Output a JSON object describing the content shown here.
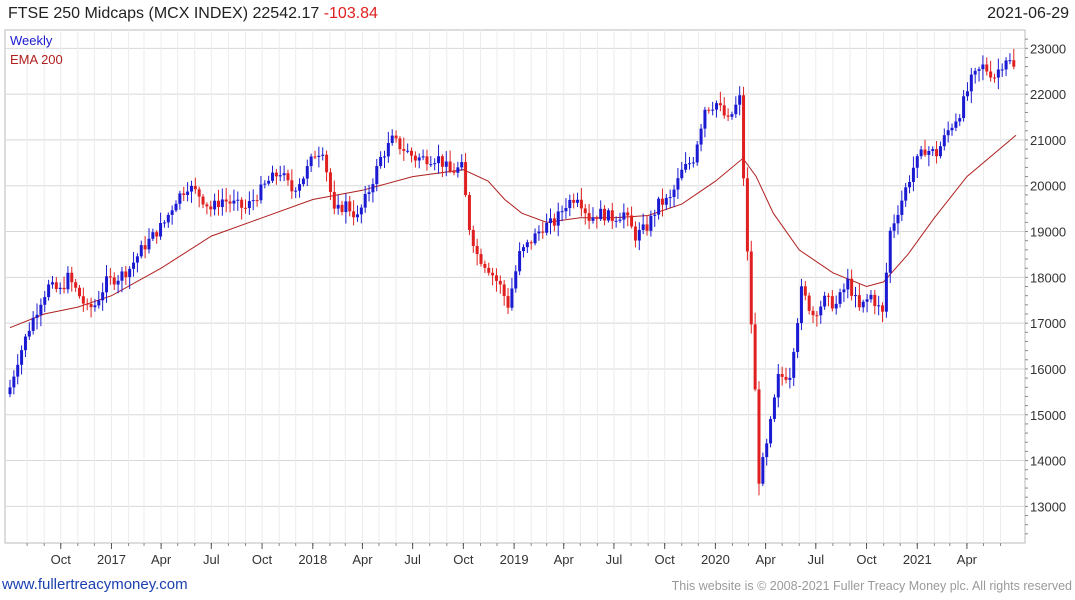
{
  "header": {
    "title": "FTSE 250 Midcaps (MCX INDEX) 22542.17",
    "change": "-103.84",
    "date": "2021-06-29"
  },
  "footer": {
    "url": "www.fullertreacymoney.com",
    "copyright": "This website is © 2008-2021 Fuller Treacy Money plc. All rights reserved"
  },
  "colors": {
    "up": "#1a1ad2",
    "down": "#e02020",
    "ema": "#b02020",
    "grid": "#d8d8d8"
  },
  "chart_data": {
    "type": "candlestick",
    "legend": [
      "Weekly",
      "EMA 200"
    ],
    "legend_colors": [
      "#1a1ad2",
      "#b02020"
    ],
    "ylim": [
      12200,
      23400
    ],
    "yticks": [
      13000,
      14000,
      15000,
      16000,
      17000,
      18000,
      19000,
      20000,
      21000,
      22000,
      23000
    ],
    "x_start": "2016-07-01",
    "x_end": "2021-06-29",
    "xticks": [
      {
        "label": "Oct",
        "date": "2016-10-01"
      },
      {
        "label": "2017",
        "date": "2017-01-01"
      },
      {
        "label": "Apr",
        "date": "2017-04-01"
      },
      {
        "label": "Jul",
        "date": "2017-07-01"
      },
      {
        "label": "Oct",
        "date": "2017-10-01"
      },
      {
        "label": "2018",
        "date": "2018-01-01"
      },
      {
        "label": "Apr",
        "date": "2018-04-01"
      },
      {
        "label": "Jul",
        "date": "2018-07-01"
      },
      {
        "label": "Oct",
        "date": "2018-10-01"
      },
      {
        "label": "2019",
        "date": "2019-01-01"
      },
      {
        "label": "Apr",
        "date": "2019-04-01"
      },
      {
        "label": "Jul",
        "date": "2019-07-01"
      },
      {
        "label": "Oct",
        "date": "2019-10-01"
      },
      {
        "label": "2020",
        "date": "2020-01-01"
      },
      {
        "label": "Apr",
        "date": "2020-04-01"
      },
      {
        "label": "Jul",
        "date": "2020-07-01"
      },
      {
        "label": "Oct",
        "date": "2020-10-01"
      },
      {
        "label": "2021",
        "date": "2021-01-01"
      },
      {
        "label": "Apr",
        "date": "2021-04-01"
      }
    ],
    "close": [
      [
        [
          "2016-07-01",
          15600
        ],
        [
          "2016-07-15",
          16200
        ],
        [
          "2016-08-05",
          16900
        ],
        [
          "2016-08-26",
          17500
        ],
        [
          "2016-09-09",
          17800
        ],
        [
          "2016-09-30",
          17700
        ],
        [
          "2016-10-14",
          18000
        ],
        [
          "2016-11-04",
          17600
        ],
        [
          "2016-11-18",
          17300
        ],
        [
          "2016-12-02",
          17400
        ],
        [
          "2016-12-23",
          17900
        ],
        [
          "2017-01-13",
          18000
        ],
        [
          "2017-02-03",
          18200
        ],
        [
          "2017-02-24",
          18600
        ],
        [
          "2017-03-17",
          18900
        ],
        [
          "2017-04-07",
          19200
        ],
        [
          "2017-04-28",
          19700
        ],
        [
          "2017-05-19",
          20000
        ],
        [
          "2017-06-09",
          19800
        ],
        [
          "2017-06-30",
          19500
        ],
        [
          "2017-07-21",
          19700
        ],
        [
          "2017-08-11",
          19600
        ],
        [
          "2017-09-01",
          19500
        ],
        [
          "2017-09-22",
          19800
        ],
        [
          "2017-10-13",
          20100
        ],
        [
          "2017-11-03",
          20300
        ],
        [
          "2017-11-24",
          19900
        ],
        [
          "2017-12-15",
          20200
        ],
        [
          "2018-01-05",
          20700
        ],
        [
          "2018-01-19",
          20800
        ],
        [
          "2018-02-09",
          19400
        ],
        [
          "2018-03-02",
          19600
        ],
        [
          "2018-03-23",
          19300
        ],
        [
          "2018-04-13",
          19900
        ],
        [
          "2018-05-04",
          20600
        ],
        [
          "2018-05-25",
          21000
        ],
        [
          "2018-06-15",
          20800
        ],
        [
          "2018-07-06",
          20600
        ],
        [
          "2018-07-27",
          20600
        ],
        [
          "2018-08-17",
          20600
        ],
        [
          "2018-09-07",
          20300
        ],
        [
          "2018-09-28",
          20400
        ],
        [
          "2018-10-12",
          19100
        ],
        [
          "2018-10-26",
          18500
        ],
        [
          "2018-11-16",
          18200
        ],
        [
          "2018-12-07",
          17800
        ],
        [
          "2018-12-21",
          17400
        ],
        [
          "2019-01-11",
          18500
        ],
        [
          "2019-02-01",
          18800
        ],
        [
          "2019-02-22",
          19100
        ],
        [
          "2019-03-15",
          19200
        ],
        [
          "2019-04-05",
          19600
        ],
        [
          "2019-04-26",
          19800
        ],
        [
          "2019-05-17",
          19300
        ],
        [
          "2019-06-07",
          19400
        ],
        [
          "2019-06-28",
          19300
        ],
        [
          "2019-07-19",
          19400
        ],
        [
          "2019-08-09",
          18900
        ],
        [
          "2019-08-30",
          19100
        ],
        [
          "2019-09-20",
          19600
        ],
        [
          "2019-10-11",
          19700
        ],
        [
          "2019-11-01",
          20300
        ],
        [
          "2019-11-22",
          20600
        ],
        [
          "2019-12-13",
          21700
        ],
        [
          "2020-01-03",
          21800
        ],
        [
          "2020-01-24",
          21400
        ],
        [
          "2020-02-14",
          21900
        ],
        [
          "2020-02-28",
          18500
        ],
        [
          "2020-03-13",
          15500
        ],
        [
          "2020-03-20",
          13600
        ],
        [
          "2020-04-03",
          14300
        ],
        [
          "2020-04-24",
          15800
        ],
        [
          "2020-05-15",
          15900
        ],
        [
          "2020-06-05",
          17700
        ],
        [
          "2020-06-26",
          17200
        ],
        [
          "2020-07-17",
          17500
        ],
        [
          "2020-08-07",
          17400
        ],
        [
          "2020-08-28",
          17900
        ],
        [
          "2020-09-18",
          17300
        ],
        [
          "2020-10-09",
          17600
        ],
        [
          "2020-10-30",
          17200
        ],
        [
          "2020-11-13",
          19000
        ],
        [
          "2020-12-04",
          19700
        ],
        [
          "2020-12-25",
          20400
        ],
        [
          "2021-01-15",
          20800
        ],
        [
          "2021-02-05",
          20700
        ],
        [
          "2021-02-26",
          21200
        ],
        [
          "2021-03-19",
          21600
        ],
        [
          "2021-04-09",
          22300
        ],
        [
          "2021-04-30",
          22600
        ],
        [
          "2021-05-21",
          22400
        ],
        [
          "2021-06-11",
          22800
        ],
        [
          "2021-06-29",
          22542
        ]
      ]
    ],
    "ema200": [
      [
        "2016-07-01",
        16900
      ],
      [
        "2016-09-01",
        17200
      ],
      [
        "2016-11-01",
        17350
      ],
      [
        "2017-01-01",
        17600
      ],
      [
        "2017-04-01",
        18200
      ],
      [
        "2017-07-01",
        18900
      ],
      [
        "2017-10-01",
        19300
      ],
      [
        "2018-01-01",
        19700
      ],
      [
        "2018-04-01",
        19900
      ],
      [
        "2018-07-01",
        20200
      ],
      [
        "2018-10-01",
        20350
      ],
      [
        "2018-11-15",
        20100
      ],
      [
        "2018-12-15",
        19700
      ],
      [
        "2019-01-15",
        19400
      ],
      [
        "2019-03-01",
        19200
      ],
      [
        "2019-05-01",
        19300
      ],
      [
        "2019-07-01",
        19300
      ],
      [
        "2019-09-01",
        19350
      ],
      [
        "2019-11-01",
        19600
      ],
      [
        "2020-01-01",
        20100
      ],
      [
        "2020-02-20",
        20600
      ],
      [
        "2020-03-15",
        20200
      ],
      [
        "2020-04-15",
        19400
      ],
      [
        "2020-06-01",
        18600
      ],
      [
        "2020-08-01",
        18100
      ],
      [
        "2020-10-01",
        17800
      ],
      [
        "2020-11-01",
        17900
      ],
      [
        "2020-12-15",
        18500
      ],
      [
        "2021-02-01",
        19300
      ],
      [
        "2021-04-01",
        20200
      ],
      [
        "2021-06-29",
        21100
      ]
    ]
  }
}
